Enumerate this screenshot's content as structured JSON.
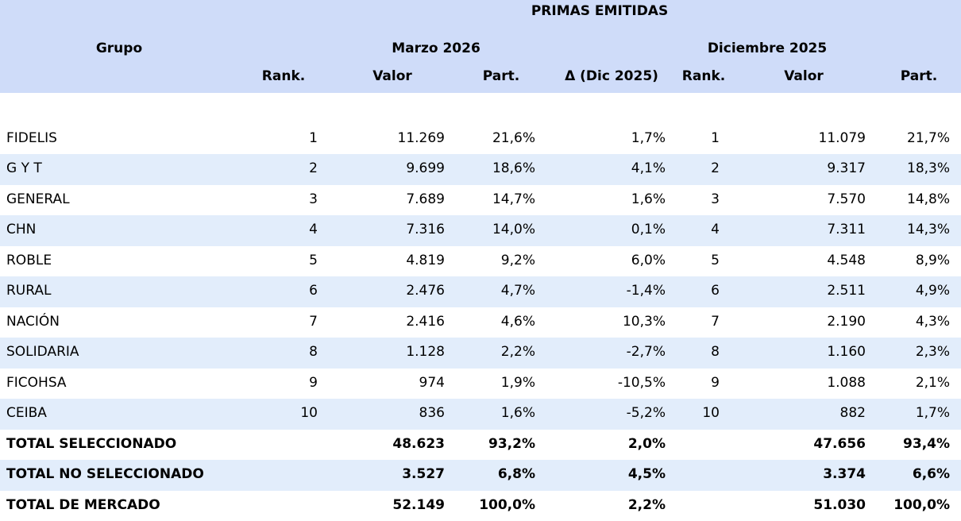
{
  "title": "PRIMAS EMITIDAS",
  "colors": {
    "header_bg": "#cfdcf9",
    "alt_row_bg": "#e2edfb",
    "row_bg": "#ffffff",
    "text": "#000000"
  },
  "chart_data": {
    "type": "table",
    "title": "PRIMAS EMITIDAS",
    "group_header": {
      "group_label": "Grupo",
      "period1": "Marzo 2026",
      "period2": "Diciembre 2025"
    },
    "columns": [
      "Rank.",
      "Valor",
      "Part.",
      "Δ (Dic 2025)",
      "Rank.",
      "Valor",
      "Part."
    ],
    "rows": [
      {
        "grupo": "FIDELIS",
        "rank1": "1",
        "valor1": "11.269",
        "part1": "21,6%",
        "delta": "1,7%",
        "rank2": "1",
        "valor2": "11.079",
        "part2": "21,7%"
      },
      {
        "grupo": "G Y T",
        "rank1": "2",
        "valor1": "9.699",
        "part1": "18,6%",
        "delta": "4,1%",
        "rank2": "2",
        "valor2": "9.317",
        "part2": "18,3%"
      },
      {
        "grupo": "GENERAL",
        "rank1": "3",
        "valor1": "7.689",
        "part1": "14,7%",
        "delta": "1,6%",
        "rank2": "3",
        "valor2": "7.570",
        "part2": "14,8%"
      },
      {
        "grupo": "CHN",
        "rank1": "4",
        "valor1": "7.316",
        "part1": "14,0%",
        "delta": "0,1%",
        "rank2": "4",
        "valor2": "7.311",
        "part2": "14,3%"
      },
      {
        "grupo": "ROBLE",
        "rank1": "5",
        "valor1": "4.819",
        "part1": "9,2%",
        "delta": "6,0%",
        "rank2": "5",
        "valor2": "4.548",
        "part2": "8,9%"
      },
      {
        "grupo": "RURAL",
        "rank1": "6",
        "valor1": "2.476",
        "part1": "4,7%",
        "delta": "-1,4%",
        "rank2": "6",
        "valor2": "2.511",
        "part2": "4,9%"
      },
      {
        "grupo": "NACIÓN",
        "rank1": "7",
        "valor1": "2.416",
        "part1": "4,6%",
        "delta": "10,3%",
        "rank2": "7",
        "valor2": "2.190",
        "part2": "4,3%"
      },
      {
        "grupo": "SOLIDARIA",
        "rank1": "8",
        "valor1": "1.128",
        "part1": "2,2%",
        "delta": "-2,7%",
        "rank2": "8",
        "valor2": "1.160",
        "part2": "2,3%"
      },
      {
        "grupo": "FICOHSA",
        "rank1": "9",
        "valor1": "974",
        "part1": "1,9%",
        "delta": "-10,5%",
        "rank2": "9",
        "valor2": "1.088",
        "part2": "2,1%"
      },
      {
        "grupo": "CEIBA",
        "rank1": "10",
        "valor1": "836",
        "part1": "1,6%",
        "delta": "-5,2%",
        "rank2": "10",
        "valor2": "882",
        "part2": "1,7%"
      }
    ],
    "totals": [
      {
        "grupo": "TOTAL SELECCIONADO",
        "rank1": "",
        "valor1": "48.623",
        "part1": "93,2%",
        "delta": "2,0%",
        "rank2": "",
        "valor2": "47.656",
        "part2": "93,4%"
      },
      {
        "grupo": "TOTAL NO SELECCIONADO",
        "rank1": "",
        "valor1": "3.527",
        "part1": "6,8%",
        "delta": "4,5%",
        "rank2": "",
        "valor2": "3.374",
        "part2": "6,6%"
      },
      {
        "grupo": "TOTAL DE MERCADO",
        "rank1": "",
        "valor1": "52.149",
        "part1": "100,0%",
        "delta": "2,2%",
        "rank2": "",
        "valor2": "51.030",
        "part2": "100,0%"
      }
    ]
  }
}
